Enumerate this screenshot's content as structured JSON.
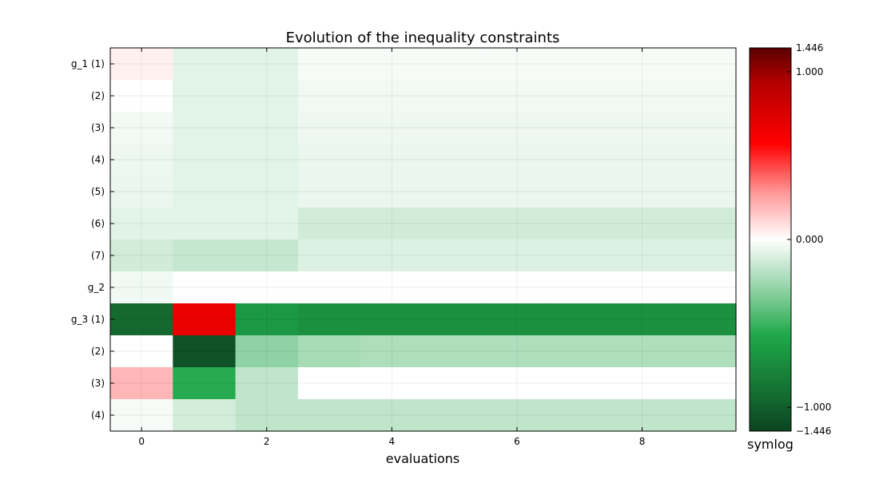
{
  "chart_data": {
    "type": "heatmap",
    "title": "Evolution of the inequality constraints",
    "xlabel": "evaluations",
    "x_ticks": [
      0,
      2,
      4,
      6,
      8
    ],
    "x_range": [
      -0.5,
      9.5
    ],
    "columns": [
      0,
      1,
      2,
      3,
      4,
      5,
      6,
      7,
      8,
      9
    ],
    "row_labels": [
      "g_1 (1)",
      "(2)",
      "(3)",
      "(4)",
      "(5)",
      "(6)",
      "(7)",
      "g_2",
      "g_3 (1)",
      "(2)",
      "(3)",
      "(4)"
    ],
    "values": [
      [
        0.05,
        -0.1,
        -0.1,
        -0.03,
        -0.03,
        -0.03,
        -0.03,
        -0.03,
        -0.03,
        -0.03
      ],
      [
        0.0,
        -0.1,
        -0.1,
        -0.05,
        -0.05,
        -0.05,
        -0.05,
        -0.05,
        -0.05,
        -0.05
      ],
      [
        -0.04,
        -0.1,
        -0.1,
        -0.06,
        -0.06,
        -0.06,
        -0.06,
        -0.06,
        -0.06,
        -0.06
      ],
      [
        -0.06,
        -0.1,
        -0.1,
        -0.07,
        -0.07,
        -0.07,
        -0.07,
        -0.07,
        -0.07,
        -0.07
      ],
      [
        -0.07,
        -0.1,
        -0.1,
        -0.07,
        -0.07,
        -0.07,
        -0.07,
        -0.07,
        -0.07,
        -0.07
      ],
      [
        -0.1,
        -0.1,
        -0.1,
        -0.16,
        -0.16,
        -0.16,
        -0.16,
        -0.16,
        -0.16,
        -0.16
      ],
      [
        -0.16,
        -0.2,
        -0.2,
        -0.12,
        -0.12,
        -0.12,
        -0.12,
        -0.12,
        -0.12,
        -0.12
      ],
      [
        -0.05,
        0.0,
        0.0,
        0.0,
        0.0,
        0.0,
        0.0,
        0.0,
        0.0,
        0.0
      ],
      [
        -1.2,
        0.85,
        -0.85,
        -0.9,
        -0.9,
        -0.9,
        -0.9,
        -0.9,
        -0.9,
        -0.9
      ],
      [
        0.0,
        -1.35,
        -0.38,
        -0.3,
        -0.28,
        -0.28,
        -0.28,
        -0.28,
        -0.28,
        -0.28
      ],
      [
        0.25,
        -0.7,
        -0.22,
        0.0,
        0.0,
        0.0,
        0.0,
        0.0,
        0.0,
        0.0
      ],
      [
        -0.03,
        -0.15,
        -0.22,
        -0.22,
        -0.22,
        -0.22,
        -0.22,
        -0.22,
        -0.22,
        -0.22
      ]
    ],
    "colorbar": {
      "min": -1.446,
      "max": 1.446,
      "ticks": [
        1.446,
        1.0,
        0.0,
        -1.0,
        -1.446
      ],
      "tick_labels": [
        "1.446",
        "1.000",
        "0.000",
        "−1.000",
        "−1.446"
      ],
      "label": "symlog",
      "scale": "symlog",
      "colors": {
        "neg_max": "#0b4420",
        "neg_mid": "#1a9f45",
        "zero": "#ffffff",
        "pos_mid": "#ff0000",
        "pos_max": "#5a0000"
      }
    },
    "grid": true
  }
}
